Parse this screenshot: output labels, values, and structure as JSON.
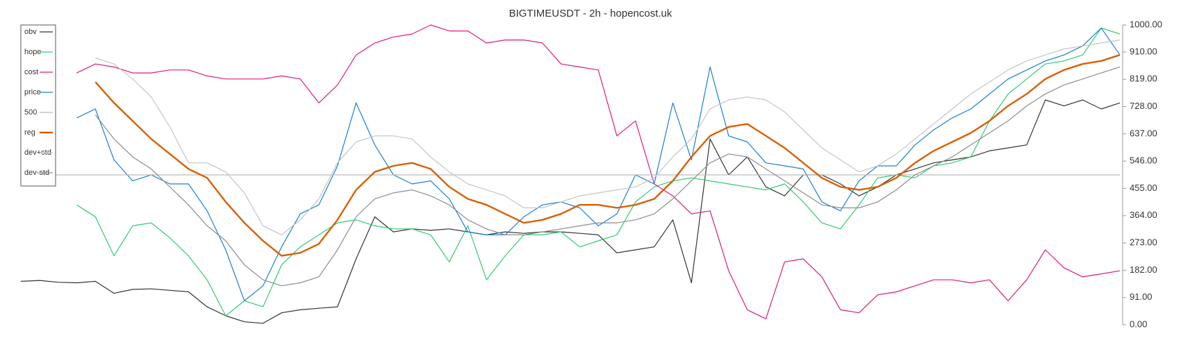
{
  "chart_data": {
    "type": "line",
    "title": "BIGTIMEUSDT - 2h - hopencost.uk",
    "ylim": [
      0,
      1000
    ],
    "yticks": [
      {
        "value": 0,
        "label": "0.00"
      },
      {
        "value": 91,
        "label": "91.00"
      },
      {
        "value": 182,
        "label": "182.00"
      },
      {
        "value": 273,
        "label": "273.00"
      },
      {
        "value": 364,
        "label": "364.00"
      },
      {
        "value": 455,
        "label": "455.00"
      },
      {
        "value": 546,
        "label": "546.00"
      },
      {
        "value": 637,
        "label": "637.00"
      },
      {
        "value": 728,
        "label": "728.00"
      },
      {
        "value": 819,
        "label": "819.00"
      },
      {
        "value": 910,
        "label": "910.00"
      },
      {
        "value": 1000,
        "label": "1000.00"
      }
    ],
    "grid": false,
    "legend": "upper left",
    "series": [
      {
        "name": "obv",
        "color": "#333333",
        "width": 1.2,
        "values": [
          145,
          148,
          142,
          140,
          145,
          105,
          118,
          120,
          115,
          110,
          60,
          30,
          10,
          5,
          40,
          50,
          55,
          60,
          220,
          360,
          310,
          320,
          315,
          320,
          310,
          300,
          310,
          305,
          310,
          310,
          305,
          300,
          240,
          250,
          260,
          350,
          140,
          620,
          500,
          560,
          460,
          430,
          500,
          500,
          470,
          430,
          460,
          500,
          520,
          540,
          550,
          560,
          580,
          590,
          600,
          750,
          730,
          750,
          720,
          740
        ]
      },
      {
        "name": "hope",
        "color": "#2ecc71",
        "width": 1.2,
        "values": [
          null,
          null,
          null,
          400,
          360,
          230,
          330,
          340,
          290,
          230,
          150,
          30,
          80,
          60,
          200,
          260,
          300,
          340,
          350,
          330,
          320,
          320,
          300,
          210,
          330,
          150,
          230,
          300,
          300,
          310,
          260,
          280,
          300,
          410,
          460,
          480,
          490,
          480,
          470,
          460,
          450,
          470,
          410,
          340,
          320,
          400,
          490,
          500,
          490,
          530,
          540,
          560,
          680,
          770,
          820,
          870,
          880,
          900,
          990,
          970
        ]
      },
      {
        "name": "cost",
        "color": "#e0197d",
        "width": 1.2,
        "values": [
          null,
          null,
          null,
          840,
          870,
          860,
          840,
          840,
          850,
          850,
          830,
          820,
          820,
          820,
          830,
          820,
          740,
          800,
          900,
          940,
          960,
          970,
          1000,
          980,
          980,
          940,
          950,
          950,
          940,
          870,
          860,
          850,
          630,
          680,
          470,
          430,
          370,
          380,
          180,
          50,
          20,
          210,
          220,
          160,
          50,
          40,
          100,
          110,
          130,
          150,
          150,
          140,
          150,
          80,
          150,
          250,
          190,
          160,
          170,
          180
        ]
      },
      {
        "name": "price",
        "color": "#1a7fd4",
        "width": 1.2,
        "values": [
          null,
          null,
          null,
          690,
          720,
          550,
          480,
          500,
          470,
          470,
          380,
          250,
          80,
          130,
          260,
          370,
          400,
          530,
          740,
          600,
          500,
          470,
          480,
          420,
          310,
          300,
          300,
          360,
          400,
          410,
          390,
          330,
          370,
          500,
          470,
          740,
          550,
          860,
          630,
          610,
          540,
          530,
          520,
          410,
          380,
          480,
          530,
          530,
          600,
          650,
          690,
          720,
          770,
          820,
          850,
          880,
          900,
          930,
          990,
          900
        ]
      },
      {
        "name": "500",
        "color": "#bbbbbb",
        "width": 1.2,
        "values": [
          500,
          500,
          500,
          500,
          500,
          500,
          500,
          500,
          500,
          500,
          500,
          500,
          500,
          500,
          500,
          500,
          500,
          500,
          500,
          500,
          500,
          500,
          500,
          500,
          500,
          500,
          500,
          500,
          500,
          500,
          500,
          500,
          500,
          500,
          500,
          500,
          500,
          500,
          500,
          500,
          500,
          500,
          500,
          500,
          500,
          500,
          500,
          500,
          500,
          500,
          500,
          500,
          500,
          500,
          500,
          500,
          500,
          500,
          500,
          500
        ]
      },
      {
        "name": "reg",
        "color": "#d95f02",
        "width": 2.4,
        "values": [
          null,
          null,
          null,
          null,
          810,
          740,
          680,
          620,
          570,
          520,
          490,
          410,
          340,
          280,
          230,
          240,
          270,
          350,
          450,
          510,
          530,
          540,
          520,
          460,
          420,
          400,
          370,
          340,
          350,
          370,
          400,
          400,
          390,
          400,
          420,
          480,
          560,
          630,
          660,
          670,
          630,
          590,
          540,
          490,
          460,
          450,
          460,
          490,
          540,
          580,
          610,
          640,
          680,
          730,
          770,
          820,
          850,
          870,
          880,
          900
        ]
      },
      {
        "name": "dev+std",
        "color": "#c4c4c4",
        "width": 1.2,
        "values": [
          null,
          null,
          null,
          null,
          890,
          870,
          820,
          760,
          660,
          540,
          540,
          510,
          440,
          330,
          300,
          350,
          420,
          540,
          610,
          630,
          630,
          620,
          560,
          510,
          470,
          450,
          430,
          390,
          390,
          410,
          430,
          440,
          450,
          460,
          490,
          560,
          620,
          720,
          750,
          760,
          750,
          710,
          650,
          590,
          550,
          510,
          530,
          570,
          620,
          670,
          720,
          770,
          810,
          850,
          880,
          900,
          920,
          930,
          940,
          950
        ]
      },
      {
        "name": "dev-std",
        "color": "#8c8c8c",
        "width": 1.2,
        "values": [
          null,
          null,
          null,
          null,
          700,
          620,
          560,
          520,
          460,
          400,
          330,
          280,
          200,
          150,
          130,
          140,
          160,
          250,
          360,
          420,
          440,
          450,
          430,
          400,
          350,
          320,
          300,
          300,
          310,
          320,
          330,
          340,
          340,
          350,
          370,
          420,
          480,
          540,
          570,
          560,
          520,
          480,
          440,
          400,
          390,
          390,
          410,
          450,
          500,
          530,
          560,
          600,
          640,
          680,
          730,
          770,
          800,
          820,
          840,
          860
        ]
      }
    ]
  }
}
